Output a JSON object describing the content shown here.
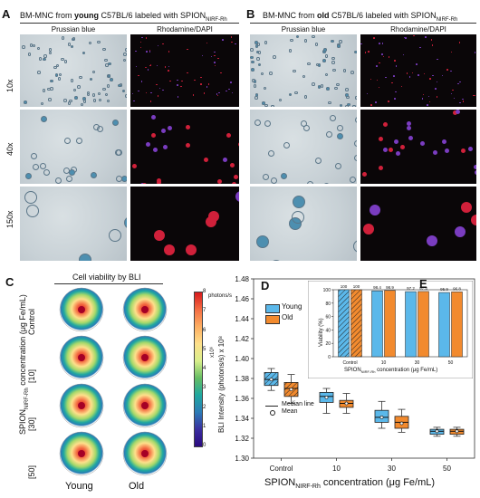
{
  "panels": {
    "A": {
      "letter": "A",
      "title_pre": "BM-MNC from ",
      "title_bold": "young",
      "title_mid": " C57BL/6 labeled with SPION",
      "title_sub": "NIRF-Rh"
    },
    "B": {
      "letter": "B",
      "title_pre": "BM-MNC from ",
      "title_bold": "old",
      "title_mid": " C57BL/6 labeled with SPION",
      "title_sub": "NIRF-Rh"
    },
    "C": {
      "letter": "C",
      "title": "Cell viability by BLI"
    },
    "D": {
      "letter": "D"
    },
    "E": {
      "letter": "E"
    }
  },
  "microscopy": {
    "columns": [
      "Prussian blue",
      "Rhodamine/DAPI",
      "Prussian blue",
      "Rhodamine/DAPI"
    ],
    "rows": [
      "10x",
      "40x",
      "150x"
    ]
  },
  "bli": {
    "row_labels": [
      "Control",
      "[10]",
      "[30]",
      "[50]"
    ],
    "col_labels": [
      "Young",
      "Old"
    ],
    "ylabel_main": "SPION",
    "ylabel_sub": "NIRF-Rh",
    "ylabel_rest": " concentration (μg Fe/mL)",
    "colorbar_unit": "photons/s",
    "colorbar_scale": "x10⁶",
    "colorbar_ticks": [
      "8",
      "7",
      "6",
      "5",
      "4",
      "3",
      "2",
      "1",
      "0"
    ]
  },
  "chart_data": [
    {
      "type": "box",
      "panel": "D",
      "ylabel": "BLI Intensity (photons/s) x 10⁸",
      "xlabel_main": "SPION",
      "xlabel_sub": "NIRF-Rh",
      "xlabel_rest": " concentration (μg Fe/mL)",
      "categories": [
        "Control",
        "10",
        "30",
        "50"
      ],
      "ylim": [
        1.3,
        1.48
      ],
      "yticks": [
        "1.30",
        "1.32",
        "1.34",
        "1.36",
        "1.38",
        "1.40",
        "1.42",
        "1.44",
        "1.46",
        "1.48"
      ],
      "legend": {
        "young": "Young",
        "old": "Old",
        "median": "Median line",
        "mean": "Mean"
      },
      "colors": {
        "young": "#5bb8ea",
        "old": "#f28a2e"
      },
      "series": [
        {
          "name": "Young",
          "boxes": [
            {
              "min": 1.368,
              "q1": 1.373,
              "median": 1.379,
              "q3": 1.386,
              "max": 1.39,
              "mean": 1.379
            },
            {
              "min": 1.345,
              "q1": 1.356,
              "median": 1.362,
              "q3": 1.366,
              "max": 1.37,
              "mean": 1.361
            },
            {
              "min": 1.33,
              "q1": 1.336,
              "median": 1.341,
              "q3": 1.348,
              "max": 1.357,
              "mean": 1.341
            },
            {
              "min": 1.322,
              "q1": 1.324,
              "median": 1.327,
              "q3": 1.329,
              "max": 1.331,
              "mean": 1.327
            }
          ]
        },
        {
          "name": "Old",
          "boxes": [
            {
              "min": 1.355,
              "q1": 1.362,
              "median": 1.37,
              "q3": 1.376,
              "max": 1.384,
              "mean": 1.369
            },
            {
              "min": 1.345,
              "q1": 1.351,
              "median": 1.355,
              "q3": 1.358,
              "max": 1.365,
              "mean": 1.355
            },
            {
              "min": 1.326,
              "q1": 1.33,
              "median": 1.336,
              "q3": 1.342,
              "max": 1.349,
              "mean": 1.335
            },
            {
              "min": 1.322,
              "q1": 1.324,
              "median": 1.327,
              "q3": 1.329,
              "max": 1.331,
              "mean": 1.327
            }
          ]
        }
      ]
    },
    {
      "type": "bar",
      "panel": "E",
      "ylabel": "Viability (%)",
      "xlabel_main": "SPION",
      "xlabel_sub": "NIRF-Rh",
      "xlabel_rest": " concentration (μg Fe/mL)",
      "categories": [
        "Control",
        "10",
        "30",
        "50"
      ],
      "ylim": [
        0,
        100
      ],
      "yticks": [
        "0",
        "20",
        "40",
        "60",
        "80",
        "100"
      ],
      "series": [
        {
          "name": "Young",
          "values": [
            100,
            98.4,
            97.2,
            95.9
          ],
          "labels": [
            "100",
            "98.4",
            "97.2",
            "95.9"
          ]
        },
        {
          "name": "Old",
          "values": [
            100,
            98.9,
            97.4,
            96.8
          ],
          "labels": [
            "100",
            "98.9",
            "97.4",
            "96.8"
          ]
        }
      ]
    }
  ]
}
